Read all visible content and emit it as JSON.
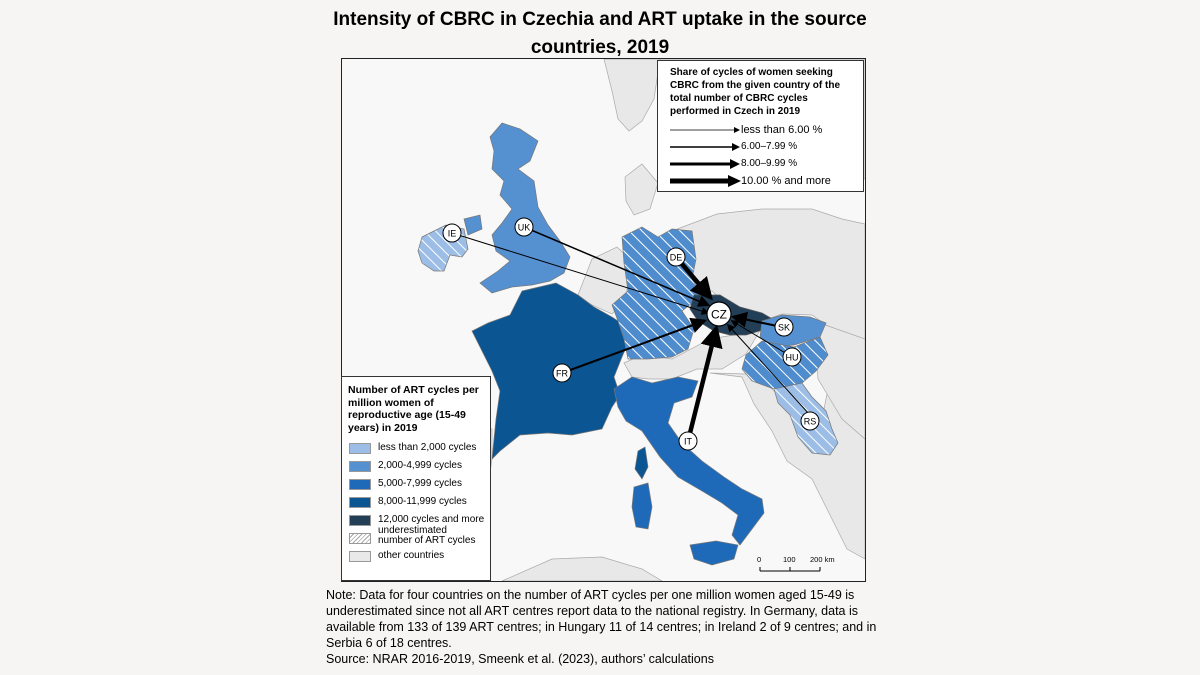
{
  "title": {
    "line1": "Intensity of CBRC in Czechia and ART uptake in the source",
    "line2": "countries, 2019"
  },
  "arrow_legend": {
    "heading": "Share of cycles of women seeking CBRC from the given country of the total number of CBRC cycles performed in Czech in 2019",
    "items": [
      {
        "label": "less than 6.00 %"
      },
      {
        "label": "6.00–7.99 %"
      },
      {
        "label": "8.00–9.99 %"
      },
      {
        "label": "10.00 % and more"
      }
    ]
  },
  "fill_legend": {
    "heading": "Number of ART cycles per million women of reproductive age (15-49 years) in 2019",
    "items": [
      {
        "label": "less than 2,000 cycles",
        "color": "#9bbde6"
      },
      {
        "label": "2,000-4,999 cycles",
        "color": "#5590d0"
      },
      {
        "label": "5,000-7,999 cycles",
        "color": "#1e6ab9"
      },
      {
        "label": "8,000-11,999 cycles",
        "color": "#0b5592"
      },
      {
        "label": "12,000 cycles and more",
        "color": "#233f57"
      },
      {
        "label": "underestimated number of ART cycles",
        "color": "hatched"
      },
      {
        "label": "other countries",
        "color": "#e9e9e9"
      }
    ]
  },
  "countries": {
    "CZ": "CZ",
    "DE": "DE",
    "UK": "UK",
    "IE": "IE",
    "FR": "FR",
    "IT": "IT",
    "SK": "SK",
    "HU": "HU",
    "RS": "RS"
  },
  "scale_bar": {
    "t0": "0",
    "t100": "100",
    "t200": "200 km"
  },
  "note": {
    "text": "Note: Data for four countries on the number of ART cycles per one million women aged 15-49 is underestimated since not all ART centres report data to the national registry. In Germany, data is available from 133 of 139 ART centres; in Hungary 11 of 14 centres; in Ireland 2 of 9 centres; and in Serbia 6 of 18 centres.",
    "source": "Source: NRAR 2016-2019, Smeenk et al. (2023), authors’ calculations"
  }
}
